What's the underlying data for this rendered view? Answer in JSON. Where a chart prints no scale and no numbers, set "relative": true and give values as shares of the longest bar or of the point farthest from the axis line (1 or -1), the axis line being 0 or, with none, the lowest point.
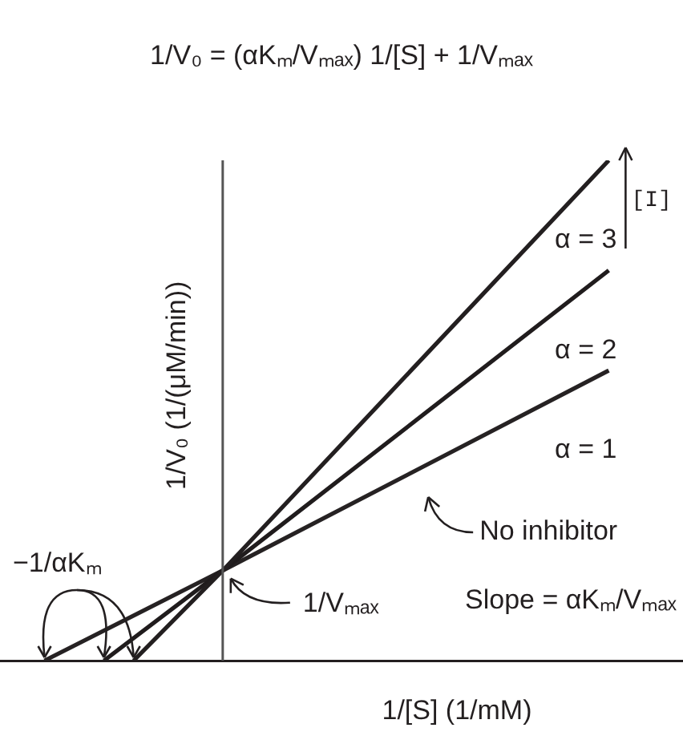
{
  "chart_data": {
    "type": "line",
    "relative": true,
    "title": "1/V₀ = (αKₘ/Vₘₐₓ) 1/[S] + 1/Vₘₐₓ",
    "xlabel": "1/[S] (1/mM)",
    "ylabel": "1/V₀ (1/(μM/min))",
    "tick_labels": false,
    "line_style": "solid",
    "categories": [
      null,
      null,
      null,
      null,
      null,
      null,
      null,
      null,
      null,
      null,
      null,
      null,
      null,
      null,
      null,
      null,
      null,
      null,
      null,
      null,
      null,
      null,
      null
    ],
    "series": [
      {
        "name": "α = 3",
        "color": "#231f20",
        "values": [
          null,
          null,
          null,
          null,
          0,
          null,
          null,
          0.18,
          null,
          null,
          null,
          null,
          null,
          null,
          null,
          null,
          null,
          null,
          null,
          null,
          1,
          null,
          null
        ]
      },
      {
        "name": "α = 2",
        "color": "#201c1d",
        "values": [
          null,
          null,
          null,
          0,
          null,
          null,
          null,
          0.18,
          null,
          null,
          null,
          null,
          null,
          null,
          null,
          null,
          null,
          null,
          null,
          null,
          0.78,
          null,
          null
        ]
      },
      {
        "name": "α = 1",
        "color": "#262223",
        "values": [
          null,
          0,
          null,
          null,
          null,
          null,
          null,
          0.18,
          null,
          null,
          null,
          null,
          null,
          null,
          null,
          null,
          null,
          null,
          null,
          null,
          0.58,
          null,
          null
        ]
      }
    ],
    "annotations": [
      "No inhibitor",
      "1/Vₘₐₓ",
      "Slope = αKₘ/Vₘₐₓ",
      "−1/αKₘ",
      "[I]"
    ]
  }
}
